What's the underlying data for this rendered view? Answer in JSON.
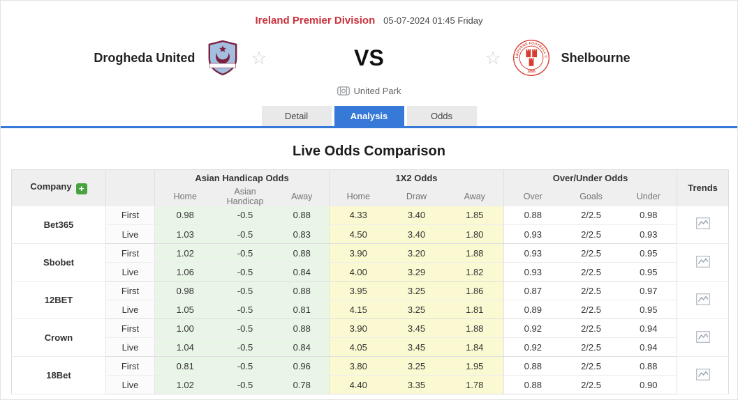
{
  "page": {
    "league": "Ireland Premier Division",
    "kickoff": "05-07-2024 01:45 Friday"
  },
  "match": {
    "home_team": "Drogheda United",
    "away_team": "Shelbourne",
    "vs": "VS",
    "venue": "United Park",
    "away_badge": {
      "ring_text": "SHELBOURNE FOOTBALL CLUB",
      "year": "1895"
    },
    "favorite_star_glyph": "☆"
  },
  "tabs": [
    {
      "label": "Detail",
      "active": false
    },
    {
      "label": "Analysis",
      "active": true
    },
    {
      "label": "Odds",
      "active": false
    }
  ],
  "section_title": "Live Odds Comparison",
  "odds_table": {
    "company_header": "Company",
    "add_button_label": "+",
    "trends_header": "Trends",
    "groups": [
      {
        "label": "Asian Handicap Odds",
        "columns": [
          "Home",
          "Asian Handicap",
          "Away"
        ]
      },
      {
        "label": "1X2 Odds",
        "columns": [
          "Home",
          "Draw",
          "Away"
        ]
      },
      {
        "label": "Over/Under Odds",
        "columns": [
          "Over",
          "Goals",
          "Under"
        ]
      }
    ],
    "rows": [
      {
        "company": "Bet365",
        "lines": [
          {
            "type": "First",
            "cells": [
              "0.98",
              "-0.5",
              "0.88",
              "4.33",
              "3.40",
              "1.85",
              "0.88",
              "2/2.5",
              "0.98"
            ]
          },
          {
            "type": "Live",
            "cells": [
              "1.03",
              "-0.5",
              "0.83",
              "4.50",
              "3.40",
              "1.80",
              "0.93",
              "2/2.5",
              "0.93"
            ]
          }
        ]
      },
      {
        "company": "Sbobet",
        "lines": [
          {
            "type": "First",
            "cells": [
              "1.02",
              "-0.5",
              "0.88",
              "3.90",
              "3.20",
              "1.88",
              "0.93",
              "2/2.5",
              "0.95"
            ]
          },
          {
            "type": "Live",
            "cells": [
              "1.06",
              "-0.5",
              "0.84",
              "4.00",
              "3.29",
              "1.82",
              "0.93",
              "2/2.5",
              "0.95"
            ]
          }
        ]
      },
      {
        "company": "12BET",
        "lines": [
          {
            "type": "First",
            "cells": [
              "0.98",
              "-0.5",
              "0.88",
              "3.95",
              "3.25",
              "1.86",
              "0.87",
              "2/2.5",
              "0.97"
            ]
          },
          {
            "type": "Live",
            "cells": [
              "1.05",
              "-0.5",
              "0.81",
              "4.15",
              "3.25",
              "1.81",
              "0.89",
              "2/2.5",
              "0.95"
            ]
          }
        ]
      },
      {
        "company": "Crown",
        "lines": [
          {
            "type": "First",
            "cells": [
              "1.00",
              "-0.5",
              "0.88",
              "3.90",
              "3.45",
              "1.88",
              "0.92",
              "2/2.5",
              "0.94"
            ]
          },
          {
            "type": "Live",
            "cells": [
              "1.04",
              "-0.5",
              "0.84",
              "4.05",
              "3.45",
              "1.84",
              "0.92",
              "2/2.5",
              "0.94"
            ]
          }
        ]
      },
      {
        "company": "18Bet",
        "lines": [
          {
            "type": "First",
            "cells": [
              "0.81",
              "-0.5",
              "0.96",
              "3.80",
              "3.25",
              "1.95",
              "0.88",
              "2/2.5",
              "0.88"
            ]
          },
          {
            "type": "Live",
            "cells": [
              "1.02",
              "-0.5",
              "0.78",
              "4.40",
              "3.35",
              "1.78",
              "0.88",
              "2/2.5",
              "0.90"
            ]
          }
        ]
      }
    ]
  },
  "colors": {
    "league_red": "#c9323e",
    "accent_blue": "#3679d6",
    "asian_handicap_cell_bg": "#e9f5e7",
    "x12_cell_bg": "#fbf9d2",
    "header_bg": "#efefef",
    "add_button_green": "#48a23f",
    "home_badge_blue": "#a3bede",
    "home_badge_maroon": "#7b2242",
    "away_badge_red": "#d63c31"
  }
}
